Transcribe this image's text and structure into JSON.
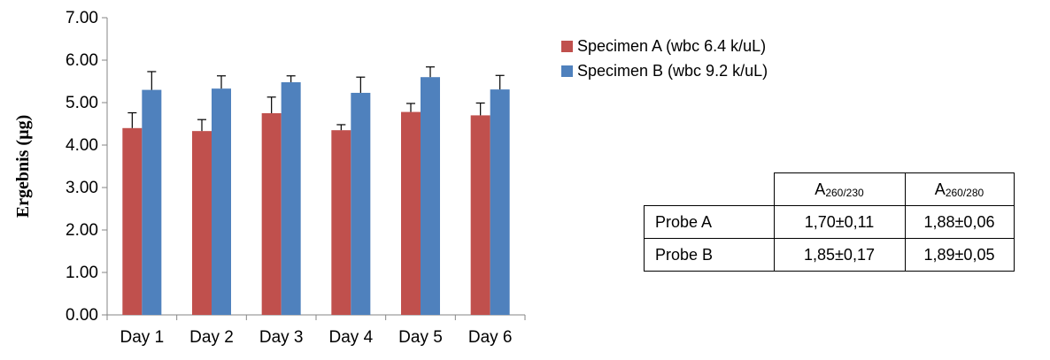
{
  "chart_data": {
    "type": "bar",
    "ylabel": "Ergebnis (µg)",
    "xlabel": "",
    "ylim": [
      0,
      7
    ],
    "yticks": [
      "0.00",
      "1.00",
      "2.00",
      "3.00",
      "4.00",
      "5.00",
      "6.00",
      "7.00"
    ],
    "categories": [
      "Day 1",
      "Day 2",
      "Day 3",
      "Day 4",
      "Day 5",
      "Day 6"
    ],
    "grid": false,
    "legend_position": "right",
    "series": [
      {
        "name": "Specimen A (wbc 6.4 k/uL)",
        "color": "#c0504d",
        "values": [
          4.4,
          4.33,
          4.75,
          4.35,
          4.78,
          4.7
        ],
        "errors": [
          0.36,
          0.27,
          0.38,
          0.13,
          0.2,
          0.29
        ]
      },
      {
        "name": "Specimen B (wbc 9.2 k/uL)",
        "color": "#4f81bd",
        "values": [
          5.3,
          5.33,
          5.48,
          5.23,
          5.6,
          5.31
        ],
        "errors": [
          0.43,
          0.3,
          0.15,
          0.37,
          0.24,
          0.33
        ]
      }
    ]
  },
  "ratio_table": {
    "headers": [
      {
        "base": "A",
        "sub": "260/230"
      },
      {
        "base": "A",
        "sub": "260/280"
      }
    ],
    "rows": [
      {
        "label": "Probe A",
        "a260_230": "1,70±0,11",
        "a260_280": "1,88±0,06"
      },
      {
        "label": "Probe B",
        "a260_230": "1,85±0,17",
        "a260_280": "1,89±0,05"
      }
    ]
  }
}
